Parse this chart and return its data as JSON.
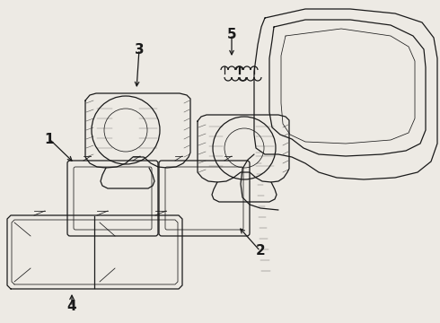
{
  "bg_color": "#edeae4",
  "line_color": "#1a1a1a",
  "fig_w": 4.9,
  "fig_h": 3.6,
  "dpi": 100
}
